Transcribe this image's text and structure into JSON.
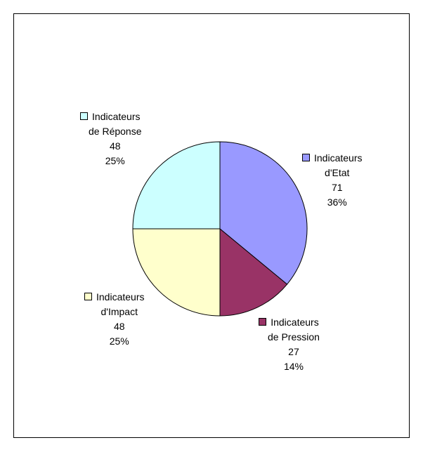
{
  "chart_data": {
    "type": "pie",
    "title": "",
    "slices": [
      {
        "name_line1": "Indicateurs",
        "name_line2": "d'Etat",
        "value": "71",
        "percent": "36%",
        "color": "#9999ff",
        "fraction": 0.36
      },
      {
        "name_line1": "Indicateurs",
        "name_line2": "de Pression",
        "value": "27",
        "percent": "14%",
        "color": "#993366",
        "fraction": 0.14
      },
      {
        "name_line1": "Indicateurs",
        "name_line2": "d'Impact",
        "value": "48",
        "percent": "25%",
        "color": "#ffffcc",
        "fraction": 0.25
      },
      {
        "name_line1": "Indicateurs",
        "name_line2": "de Réponse",
        "value": "48",
        "percent": "25%",
        "color": "#ccffff",
        "fraction": 0.25
      }
    ]
  }
}
